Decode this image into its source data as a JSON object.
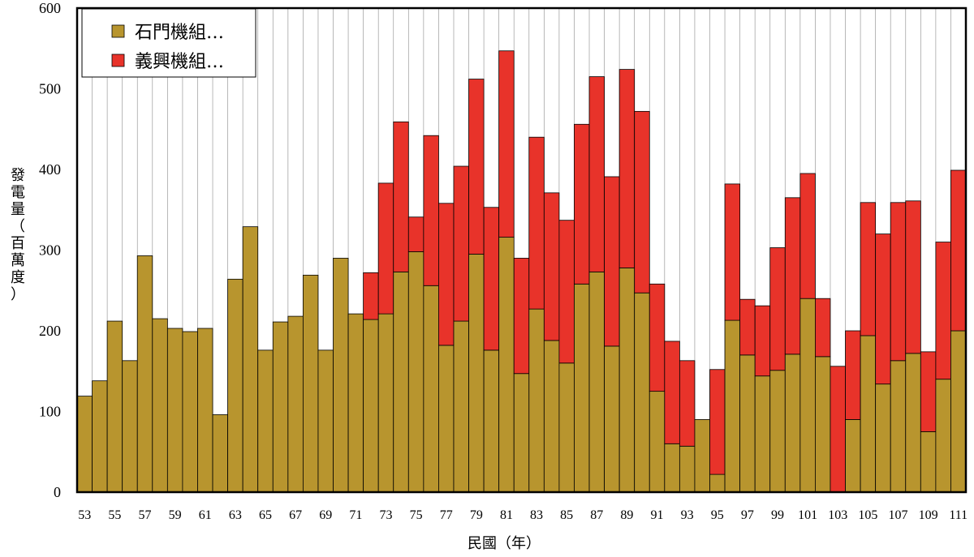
{
  "chart_data": {
    "type": "bar",
    "stacked": true,
    "xlabel": "民國（年）",
    "ylabel": "發電量（百萬度）",
    "ylim": [
      0,
      600
    ],
    "yticks": [
      0,
      100,
      200,
      300,
      400,
      500,
      600
    ],
    "grid": "vertical",
    "legend_position": "top-left",
    "x": [
      53,
      54,
      55,
      56,
      57,
      58,
      59,
      60,
      61,
      62,
      63,
      64,
      65,
      66,
      67,
      68,
      69,
      70,
      71,
      72,
      73,
      74,
      75,
      76,
      77,
      78,
      79,
      80,
      81,
      82,
      83,
      84,
      85,
      86,
      87,
      88,
      89,
      90,
      91,
      92,
      93,
      94,
      95,
      96,
      97,
      98,
      99,
      100,
      101,
      102,
      103,
      104,
      105,
      106,
      107,
      108,
      109,
      110,
      111
    ],
    "x_tick_labels": [
      "53",
      "55",
      "57",
      "59",
      "61",
      "63",
      "65",
      "67",
      "69",
      "71",
      "73",
      "75",
      "77",
      "79",
      "81",
      "83",
      "85",
      "87",
      "89",
      "91",
      "93",
      "95",
      "97",
      "99",
      "101",
      "103",
      "105",
      "107",
      "109",
      "111"
    ],
    "series": [
      {
        "name": "石門機組…",
        "color": "#b8952e",
        "values": [
          119,
          138,
          212,
          163,
          293,
          215,
          203,
          199,
          203,
          96,
          264,
          329,
          176,
          211,
          218,
          269,
          176,
          290,
          221,
          214,
          221,
          273,
          298,
          256,
          182,
          212,
          295,
          176,
          316,
          147,
          227,
          188,
          160,
          258,
          273,
          181,
          278,
          247,
          125,
          60,
          57,
          90,
          22,
          213,
          170,
          144,
          151,
          171,
          240,
          168,
          0,
          90,
          194,
          134,
          163,
          172,
          75,
          140,
          200
        ]
      },
      {
        "name": "義興機組…",
        "color": "#e8332a",
        "values": [
          0,
          0,
          0,
          0,
          0,
          0,
          0,
          0,
          0,
          0,
          0,
          0,
          0,
          0,
          0,
          0,
          0,
          0,
          0,
          58,
          162,
          186,
          43,
          186,
          176,
          192,
          217,
          177,
          231,
          143,
          213,
          183,
          177,
          198,
          242,
          210,
          246,
          225,
          133,
          127,
          106,
          0,
          130,
          169,
          69,
          87,
          152,
          194,
          155,
          72,
          156,
          110,
          165,
          186,
          196,
          189,
          99,
          170,
          199
        ]
      }
    ]
  }
}
